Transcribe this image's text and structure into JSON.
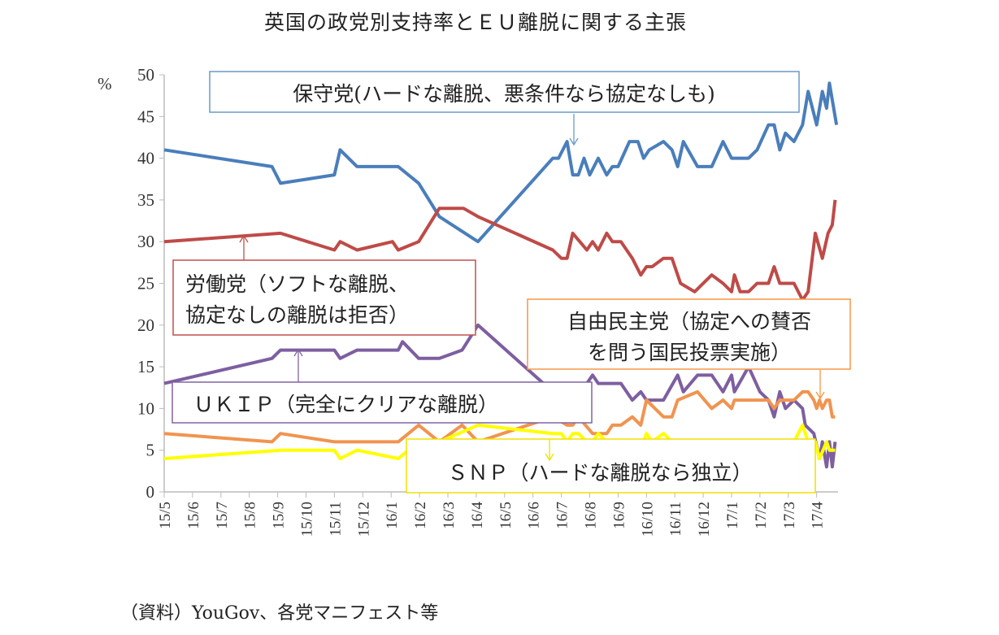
{
  "chart_data": {
    "type": "line",
    "title": "英国の政党別支持率とＥＵ離脱に関する主張",
    "ylabel": "%",
    "xlabel": "",
    "ylim": [
      0,
      50
    ],
    "yticks": [
      0,
      5,
      10,
      15,
      20,
      25,
      30,
      35,
      40,
      45,
      50
    ],
    "x_unit": "months since 15/5",
    "xtick_labels": [
      "15/5",
      "15/6",
      "15/7",
      "15/8",
      "15/9",
      "15/10",
      "15/11",
      "15/12",
      "16/1",
      "16/2",
      "16/3",
      "16/4",
      "16/5",
      "16/6",
      "16/7",
      "16/8",
      "16/9",
      "16/10",
      "16/11",
      "16/12",
      "17/1",
      "17/2",
      "17/3",
      "17/4"
    ],
    "grid": false,
    "legend": "none",
    "series": [
      {
        "name": "保守党",
        "color": "#4a7ebb",
        "label": "保守党(ハードな離脱、悪条件なら協定なしも)",
        "points": [
          [
            0,
            41
          ],
          [
            3.8,
            39
          ],
          [
            4.1,
            37
          ],
          [
            6.0,
            38
          ],
          [
            6.2,
            41
          ],
          [
            6.8,
            39
          ],
          [
            8.25,
            39
          ],
          [
            8.97,
            37
          ],
          [
            9.7,
            33
          ],
          [
            11.06,
            30
          ],
          [
            13.7,
            40
          ],
          [
            13.9,
            40
          ],
          [
            14.2,
            42
          ],
          [
            14.4,
            38
          ],
          [
            14.6,
            38
          ],
          [
            14.8,
            40
          ],
          [
            15.0,
            38
          ],
          [
            15.3,
            40
          ],
          [
            15.6,
            38
          ],
          [
            15.8,
            39
          ],
          [
            16.0,
            39
          ],
          [
            16.4,
            42
          ],
          [
            16.7,
            42
          ],
          [
            16.9,
            40
          ],
          [
            17.1,
            41
          ],
          [
            17.6,
            42
          ],
          [
            17.9,
            41
          ],
          [
            18.1,
            39
          ],
          [
            18.3,
            42
          ],
          [
            18.8,
            39
          ],
          [
            19.3,
            39
          ],
          [
            19.7,
            42
          ],
          [
            20.0,
            40
          ],
          [
            20.6,
            40
          ],
          [
            20.9,
            41
          ],
          [
            21.3,
            44
          ],
          [
            21.5,
            44
          ],
          [
            21.7,
            41
          ],
          [
            21.9,
            43
          ],
          [
            22.2,
            42
          ],
          [
            22.5,
            44
          ],
          [
            22.7,
            48
          ],
          [
            23.0,
            44
          ],
          [
            23.2,
            48
          ],
          [
            23.35,
            46
          ],
          [
            23.45,
            49
          ],
          [
            23.7,
            44
          ]
        ]
      },
      {
        "name": "労働党",
        "color": "#be4b48",
        "label": "労働党（ソフトな離脱、|協定なしの離脱は拒否）",
        "points": [
          [
            0,
            30
          ],
          [
            4.1,
            31
          ],
          [
            6.0,
            29
          ],
          [
            6.2,
            30
          ],
          [
            6.8,
            29
          ],
          [
            8.05,
            30
          ],
          [
            8.25,
            29
          ],
          [
            8.97,
            30
          ],
          [
            9.7,
            34
          ],
          [
            10.55,
            34
          ],
          [
            11.06,
            33
          ],
          [
            13.7,
            29
          ],
          [
            14.0,
            28
          ],
          [
            14.2,
            28
          ],
          [
            14.4,
            31
          ],
          [
            14.9,
            29
          ],
          [
            15.1,
            30
          ],
          [
            15.3,
            29
          ],
          [
            15.6,
            31
          ],
          [
            15.8,
            30
          ],
          [
            16.1,
            30
          ],
          [
            16.5,
            28
          ],
          [
            16.8,
            26
          ],
          [
            17.0,
            27
          ],
          [
            17.2,
            27
          ],
          [
            17.6,
            28
          ],
          [
            17.9,
            28
          ],
          [
            18.2,
            25
          ],
          [
            18.7,
            24
          ],
          [
            19.3,
            26
          ],
          [
            19.7,
            25
          ],
          [
            20.0,
            24
          ],
          [
            20.1,
            26
          ],
          [
            20.3,
            24
          ],
          [
            20.6,
            24
          ],
          [
            20.9,
            25
          ],
          [
            21.3,
            25
          ],
          [
            21.5,
            27
          ],
          [
            21.7,
            25
          ],
          [
            22.2,
            25
          ],
          [
            22.5,
            23
          ],
          [
            22.7,
            24
          ],
          [
            22.95,
            31
          ],
          [
            23.2,
            28
          ],
          [
            23.4,
            31
          ],
          [
            23.55,
            32
          ],
          [
            23.65,
            35
          ]
        ]
      },
      {
        "name": "UKIP",
        "color": "#7d5fa0",
        "label": "ＵＫＩＰ（完全にクリアな離脱）",
        "points": [
          [
            0,
            13
          ],
          [
            3.8,
            16
          ],
          [
            4.1,
            17
          ],
          [
            6.0,
            17
          ],
          [
            6.2,
            16
          ],
          [
            6.8,
            17
          ],
          [
            8.25,
            17
          ],
          [
            8.4,
            18
          ],
          [
            8.97,
            16
          ],
          [
            9.7,
            16
          ],
          [
            10.5,
            17
          ],
          [
            11.06,
            20
          ],
          [
            13.7,
            12
          ],
          [
            14.0,
            13
          ],
          [
            14.2,
            12
          ],
          [
            14.4,
            13
          ],
          [
            14.9,
            13
          ],
          [
            15.1,
            14
          ],
          [
            15.3,
            13
          ],
          [
            16.1,
            13
          ],
          [
            16.5,
            11
          ],
          [
            16.8,
            12
          ],
          [
            17.0,
            11
          ],
          [
            17.6,
            11
          ],
          [
            18.1,
            14
          ],
          [
            18.3,
            12
          ],
          [
            18.8,
            14
          ],
          [
            19.3,
            14
          ],
          [
            19.7,
            12
          ],
          [
            20.0,
            14
          ],
          [
            20.1,
            12
          ],
          [
            20.6,
            15
          ],
          [
            21.0,
            12
          ],
          [
            21.3,
            11
          ],
          [
            21.5,
            9
          ],
          [
            21.7,
            12
          ],
          [
            21.9,
            10
          ],
          [
            22.2,
            11
          ],
          [
            22.5,
            10
          ],
          [
            22.6,
            8
          ],
          [
            22.9,
            7
          ],
          [
            23.1,
            4
          ],
          [
            23.2,
            6
          ],
          [
            23.35,
            3
          ],
          [
            23.45,
            6
          ],
          [
            23.55,
            3
          ],
          [
            23.65,
            6
          ]
        ]
      },
      {
        "name": "自由民主党",
        "color": "#f09450",
        "label": "自由民主党（協定への賛否|を問う国民投票実施）",
        "points": [
          [
            0,
            7
          ],
          [
            3.8,
            6
          ],
          [
            4.1,
            7
          ],
          [
            6.0,
            6
          ],
          [
            8.25,
            6
          ],
          [
            8.97,
            8
          ],
          [
            9.7,
            6
          ],
          [
            10.5,
            8
          ],
          [
            11.06,
            6
          ],
          [
            13.7,
            9
          ],
          [
            14.2,
            8
          ],
          [
            14.4,
            8
          ],
          [
            14.6,
            9
          ],
          [
            15.1,
            7
          ],
          [
            15.6,
            7
          ],
          [
            15.8,
            8
          ],
          [
            16.1,
            8
          ],
          [
            16.5,
            9
          ],
          [
            16.8,
            8
          ],
          [
            17.0,
            11
          ],
          [
            17.6,
            9
          ],
          [
            17.9,
            9
          ],
          [
            18.1,
            11
          ],
          [
            18.8,
            12
          ],
          [
            19.3,
            10
          ],
          [
            19.7,
            11
          ],
          [
            20.0,
            10
          ],
          [
            20.1,
            11
          ],
          [
            21.3,
            11
          ],
          [
            21.5,
            10
          ],
          [
            21.7,
            11
          ],
          [
            22.2,
            11
          ],
          [
            22.5,
            12
          ],
          [
            22.7,
            12
          ],
          [
            22.9,
            11
          ],
          [
            23.0,
            10
          ],
          [
            23.1,
            11
          ],
          [
            23.2,
            10
          ],
          [
            23.35,
            11
          ],
          [
            23.45,
            11
          ],
          [
            23.55,
            9
          ],
          [
            23.65,
            9
          ]
        ]
      },
      {
        "name": "SNP",
        "color": "#ffff00",
        "label": "ＳＮＰ（ハードな離脱なら独立）",
        "points": [
          [
            0,
            4
          ],
          [
            4.1,
            5
          ],
          [
            6.0,
            5
          ],
          [
            6.2,
            4
          ],
          [
            6.8,
            5
          ],
          [
            8.25,
            4
          ],
          [
            8.97,
            6
          ],
          [
            9.7,
            6
          ],
          [
            11.06,
            8
          ],
          [
            13.7,
            7
          ],
          [
            14.0,
            7
          ],
          [
            14.2,
            6
          ],
          [
            14.4,
            7
          ],
          [
            14.6,
            7
          ],
          [
            14.9,
            6
          ],
          [
            15.1,
            6
          ],
          [
            15.3,
            7
          ],
          [
            15.6,
            6
          ],
          [
            16.9,
            6
          ],
          [
            17.0,
            7
          ],
          [
            17.2,
            6
          ],
          [
            17.6,
            7
          ],
          [
            17.9,
            6
          ],
          [
            21.4,
            6
          ],
          [
            21.7,
            5
          ],
          [
            21.9,
            6
          ],
          [
            22.2,
            6
          ],
          [
            22.5,
            8
          ],
          [
            22.7,
            6
          ],
          [
            22.95,
            6
          ],
          [
            23.1,
            4
          ],
          [
            23.35,
            6
          ],
          [
            23.45,
            5
          ],
          [
            23.65,
            5
          ]
        ]
      }
    ],
    "source": "（資料）YouGov、各党マニフェスト等"
  }
}
